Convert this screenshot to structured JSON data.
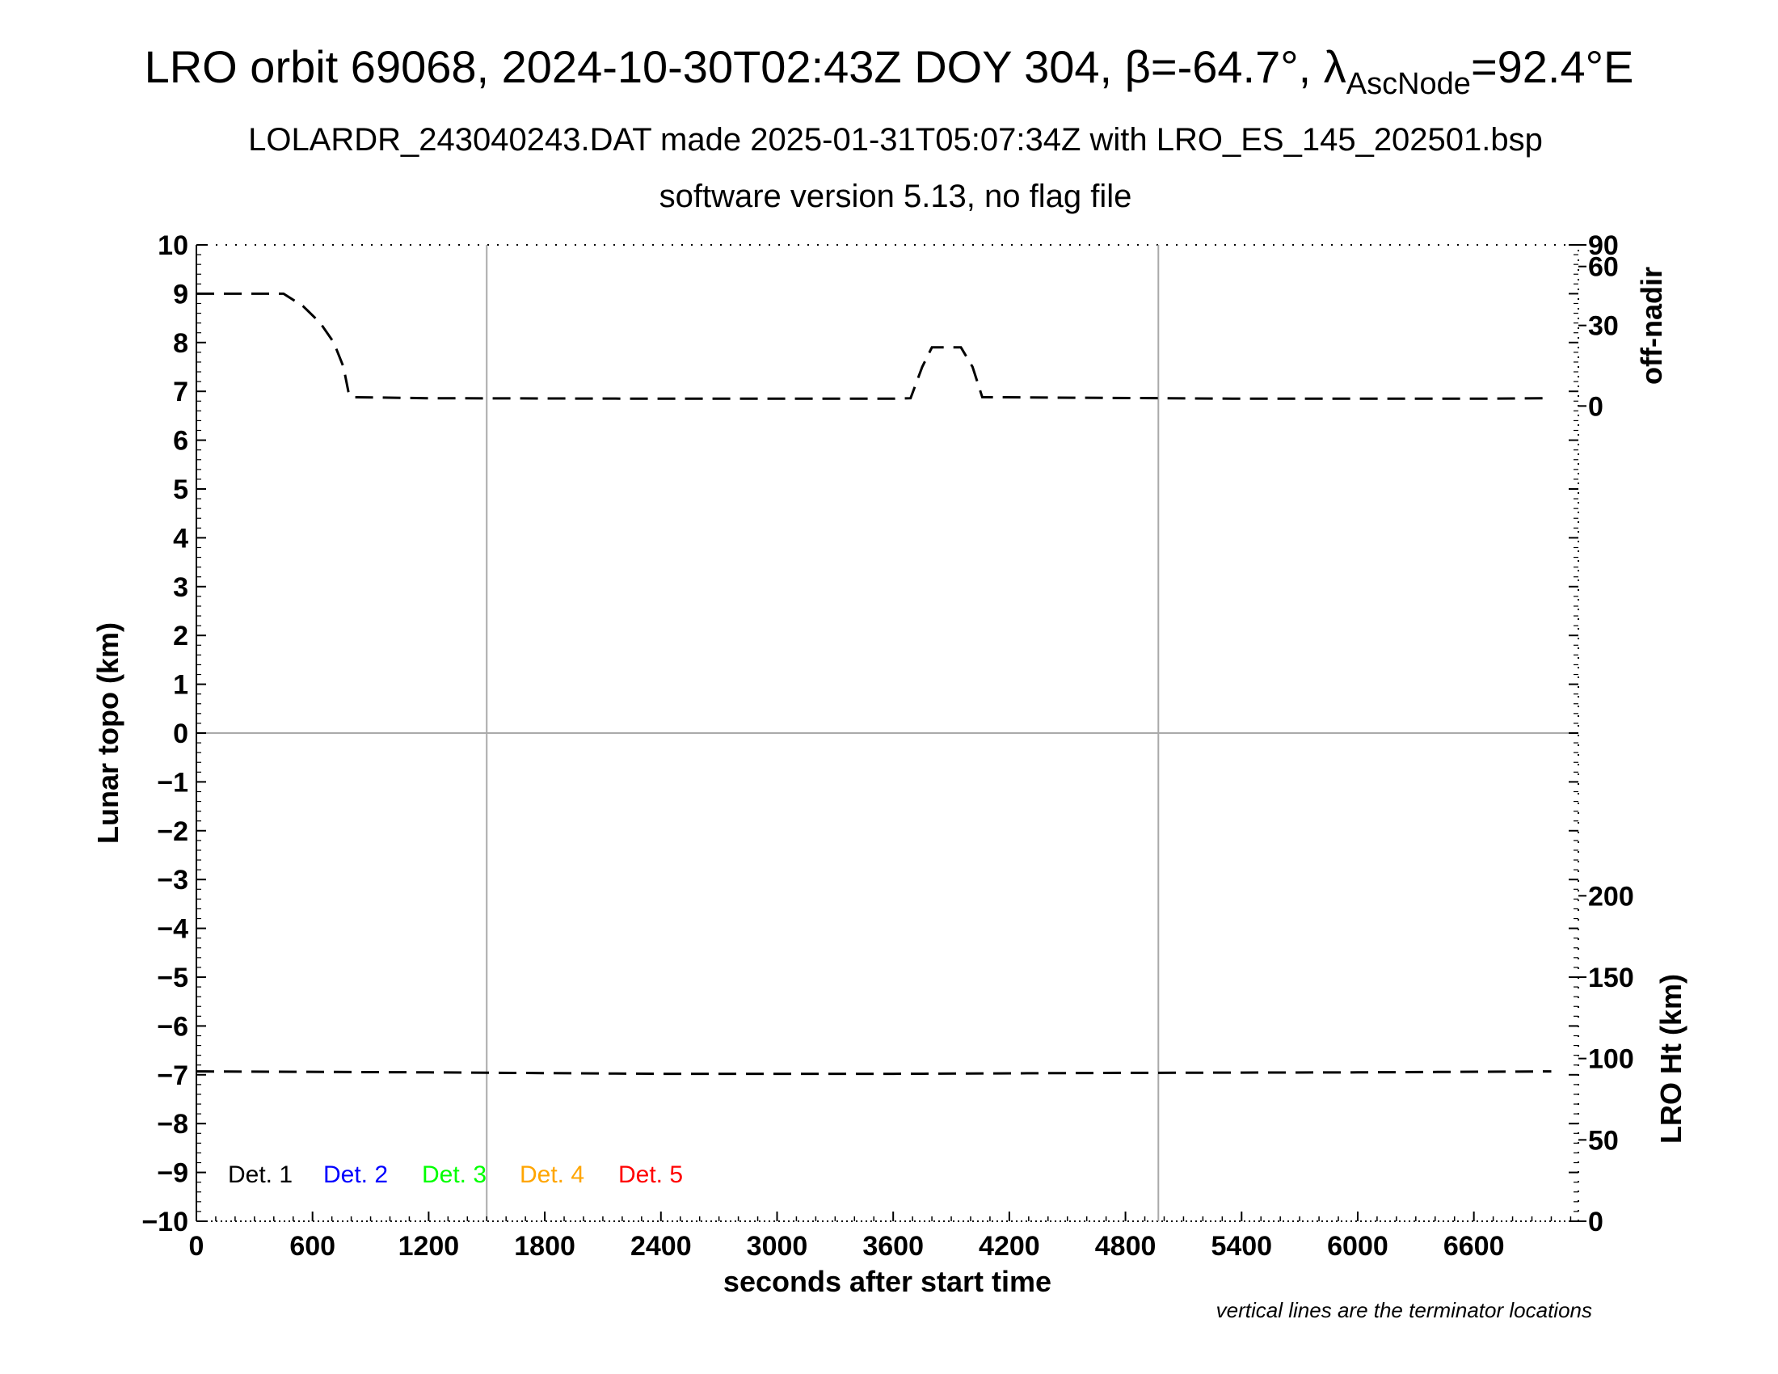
{
  "chart_data": {
    "type": "line",
    "title": {
      "prefix": "LRO orbit 69068, 2024-10-30T02:43Z DOY 304, ",
      "beta_symbol": "β",
      "beta_value": "=-64.7°, ",
      "lambda_symbol": "λ",
      "lambda_sub": "AscNode",
      "lambda_value": "=92.4°E"
    },
    "subtitle": "LOLARDR_243040243.DAT made 2025-01-31T05:07:34Z with LRO_ES_145_202501.bsp",
    "subtitle2": "software version 5.13, no flag file",
    "xlabel": "seconds after start time",
    "ylabel": "Lunar topo (km)",
    "y2_top_label": "off-nadir",
    "y2_bottom_label": "LRO Ht (km)",
    "note": "vertical lines are the terminator locations",
    "xlim": [
      0,
      7140
    ],
    "ylim": [
      -10,
      10
    ],
    "x_ticks": [
      "0",
      "600",
      "1200",
      "1800",
      "2400",
      "3000",
      "3600",
      "4200",
      "4800",
      "5400",
      "6000",
      "6600"
    ],
    "y_ticks": [
      "10",
      "9",
      "8",
      "7",
      "6",
      "5",
      "4",
      "3",
      "2",
      "1",
      "0",
      "−1",
      "−2",
      "−3",
      "−4",
      "−5",
      "−6",
      "−7",
      "−8",
      "−9",
      "−10"
    ],
    "offnadir_ticks": [
      "90",
      "60",
      "30",
      "0"
    ],
    "height_ticks": [
      "200",
      "150",
      "100",
      "50",
      "0"
    ],
    "terminator_x": [
      1500,
      4970
    ],
    "grid": "zero-line",
    "legend": [
      {
        "label": "Det. 1",
        "color": "#000000"
      },
      {
        "label": "Det. 2",
        "color": "#0000ff"
      },
      {
        "label": "Det. 3",
        "color": "#00ff00"
      },
      {
        "label": "Det. 4",
        "color": "#ffa500"
      },
      {
        "label": "Det. 5",
        "color": "#ff0000"
      }
    ],
    "legend_position": "bottom-left",
    "series": [
      {
        "values": [
          [
            0,
            9.0
          ],
          [
            450,
            9.0
          ],
          [
            550,
            8.75
          ],
          [
            640,
            8.4
          ],
          [
            710,
            8.0
          ],
          [
            760,
            7.5
          ],
          [
            785,
            7.0
          ],
          [
            800,
            6.88
          ],
          [
            1200,
            6.86
          ],
          [
            2400,
            6.85
          ],
          [
            3600,
            6.85
          ],
          [
            3690,
            6.86
          ],
          [
            3750,
            7.5
          ],
          [
            3800,
            7.9
          ],
          [
            3950,
            7.9
          ],
          [
            4010,
            7.5
          ],
          [
            4060,
            6.88
          ],
          [
            5400,
            6.85
          ],
          [
            6600,
            6.85
          ],
          [
            7000,
            6.86
          ]
        ]
      },
      {
        "values": [
          [
            0,
            -6.93
          ],
          [
            1200,
            -6.95
          ],
          [
            2400,
            -6.98
          ],
          [
            3600,
            -6.98
          ],
          [
            4800,
            -6.96
          ],
          [
            6000,
            -6.95
          ],
          [
            7000,
            -6.93
          ]
        ]
      }
    ]
  }
}
